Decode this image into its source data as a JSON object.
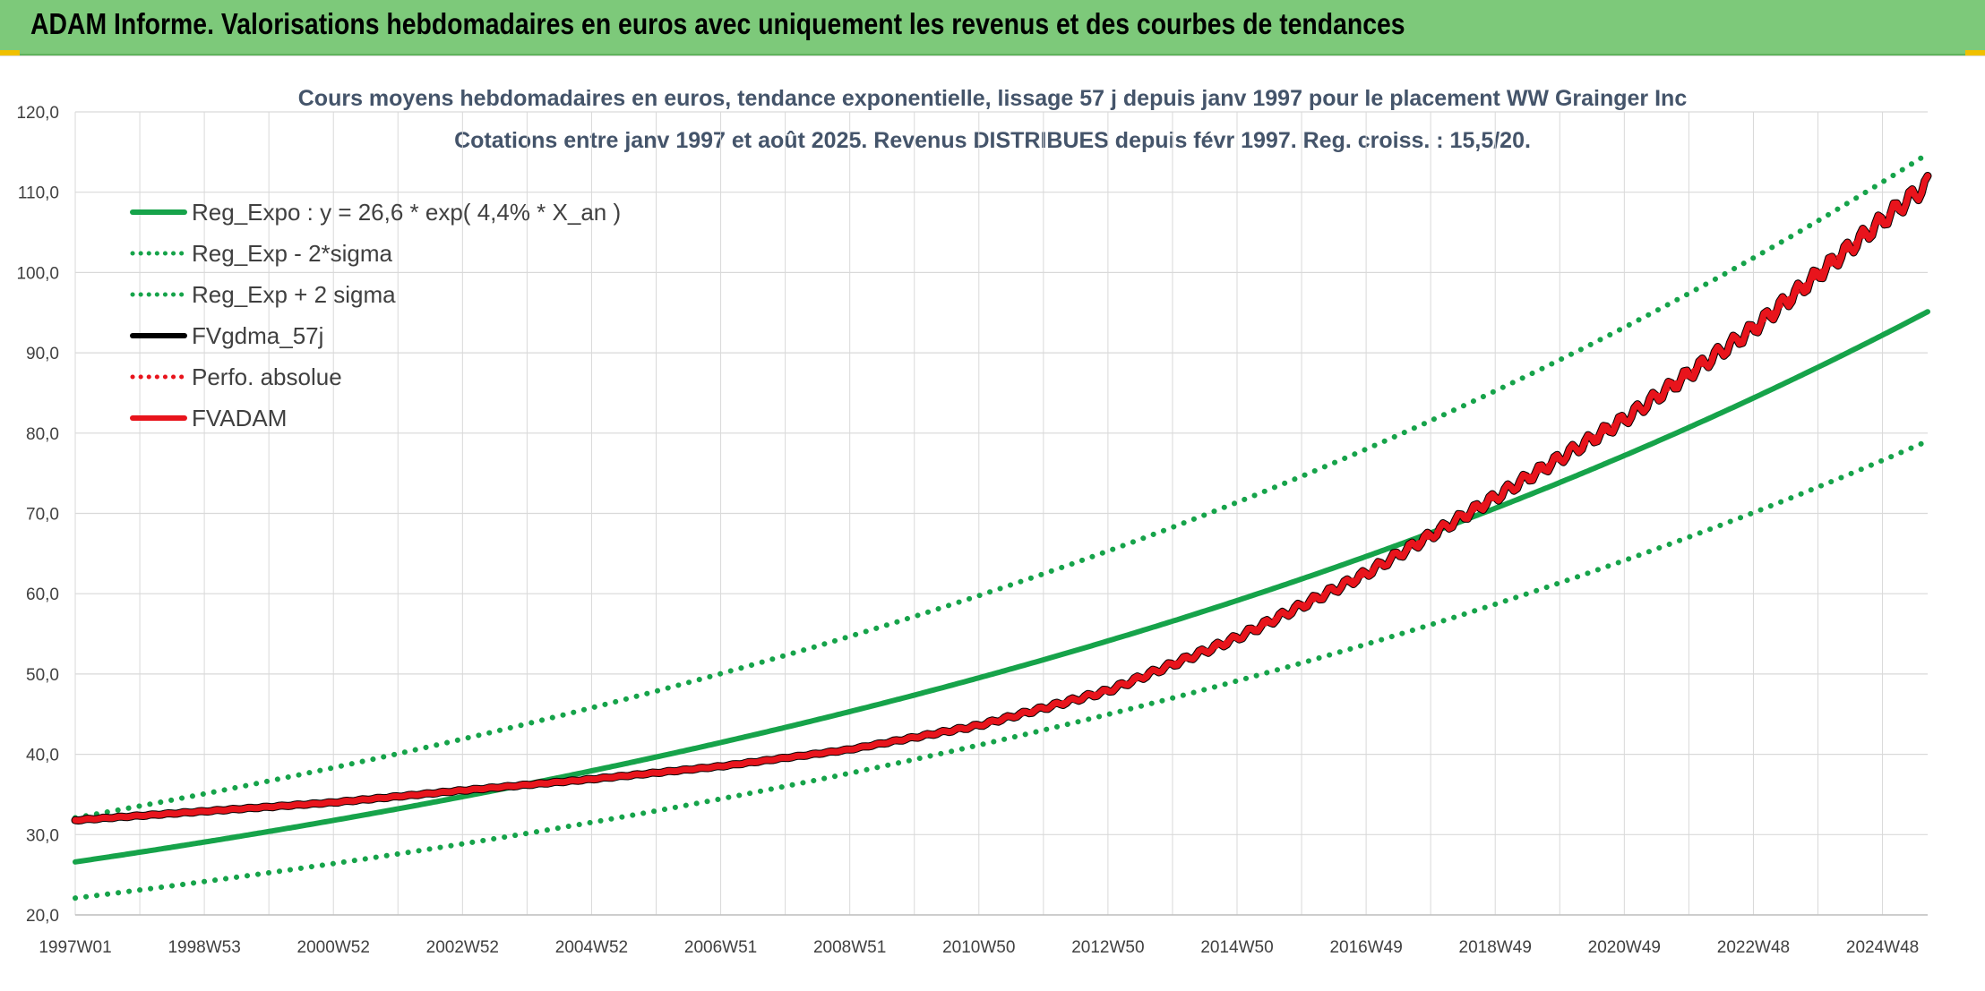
{
  "header": {
    "title": "ADAM Informe. Valorisations hebdomadaires en euros avec uniquement les revenus et des courbes de tendances"
  },
  "colors": {
    "header_bg": "#7dc97a",
    "green": "#16a34a",
    "red": "#e8141c",
    "black": "#000000",
    "grid": "#d9d9d9"
  },
  "chart_data": {
    "type": "line",
    "title": "Cours moyens hebdomadaires en euros, tendance exponentielle, lissage 57 j depuis janv 1997 pour le placement WW Grainger Inc",
    "subtitle": "Cotations entre janv 1997 et août 2025. Revenus DISTRIBUES depuis févr 1997. Reg. croiss. : 15,5/20.",
    "xlabel": "",
    "ylabel": "",
    "ylim": [
      20,
      120
    ],
    "yticks": [
      "20,0",
      "30,0",
      "40,0",
      "50,0",
      "60,0",
      "70,0",
      "80,0",
      "90,0",
      "100,0",
      "110,0",
      "120,0"
    ],
    "xlim": [
      1997.0,
      2025.7
    ],
    "xticks": [
      {
        "label": "1997W01",
        "x": 1997.0
      },
      {
        "label": "1998W53",
        "x": 1999.0
      },
      {
        "label": "2000W52",
        "x": 2001.0
      },
      {
        "label": "2002W52",
        "x": 2003.0
      },
      {
        "label": "2004W52",
        "x": 2005.0
      },
      {
        "label": "2006W51",
        "x": 2007.0
      },
      {
        "label": "2008W51",
        "x": 2009.0
      },
      {
        "label": "2010W50",
        "x": 2011.0
      },
      {
        "label": "2012W50",
        "x": 2013.0
      },
      {
        "label": "2014W50",
        "x": 2015.0
      },
      {
        "label": "2016W49",
        "x": 2017.0
      },
      {
        "label": "2018W49",
        "x": 2019.0
      },
      {
        "label": "2020W49",
        "x": 2021.0
      },
      {
        "label": "2022W48",
        "x": 2023.0
      },
      {
        "label": "2024W48",
        "x": 2025.0
      }
    ],
    "grid": true,
    "legend_position": "top-left",
    "series": [
      {
        "name": "Reg_Expo : y = 26,6 * exp( 4,4% *  X_an )",
        "color": "#16a34a",
        "style": "solid",
        "x": [
          1997.0,
          2001.0,
          2005.0,
          2009.0,
          2013.0,
          2017.0,
          2021.0,
          2025.7
        ],
        "y": [
          26.6,
          31.8,
          38.0,
          45.3,
          54.1,
          64.6,
          77.2,
          94.2
        ]
      },
      {
        "name": "Reg_Exp - 2*sigma",
        "color": "#16a34a",
        "style": "dotted",
        "x": [
          1997.0,
          2001.0,
          2005.0,
          2009.0,
          2013.0,
          2017.0,
          2021.0,
          2025.7
        ],
        "y": [
          22.1,
          26.4,
          31.5,
          37.6,
          44.9,
          53.6,
          64.0,
          78.0
        ]
      },
      {
        "name": "Reg_Exp + 2 sigma",
        "color": "#16a34a",
        "style": "dotted",
        "x": [
          1997.0,
          2001.0,
          2005.0,
          2009.0,
          2013.0,
          2017.0,
          2021.0,
          2025.7
        ],
        "y": [
          32.1,
          38.4,
          45.8,
          54.8,
          65.4,
          78.1,
          93.3,
          113.8
        ]
      },
      {
        "name": "FVgdma_57j",
        "color": "#000000",
        "style": "solid",
        "x": [
          1997.0,
          2001.0,
          2003.0,
          2005.0,
          2007.0,
          2009.0,
          2011.0,
          2013.0,
          2015.0,
          2017.0,
          2019.0,
          2021.0,
          2023.0,
          2025.0,
          2025.7
        ],
        "y": [
          31.8,
          34.0,
          35.5,
          36.9,
          38.5,
          40.6,
          43.6,
          47.9,
          54.5,
          62.5,
          72.0,
          81.7,
          93.0,
          106.5,
          111.0
        ]
      },
      {
        "name": "Perfo. absolue",
        "color": "#e8141c",
        "style": "dotted",
        "x": [
          1997.0,
          2001.0,
          2003.0,
          2005.0,
          2007.0,
          2009.0,
          2011.0,
          2013.0,
          2015.0,
          2017.0,
          2019.0,
          2021.0,
          2023.0,
          2025.0,
          2025.7
        ],
        "y": [
          31.8,
          34.0,
          35.5,
          36.9,
          38.5,
          40.6,
          43.6,
          47.9,
          54.5,
          62.5,
          72.0,
          81.7,
          93.0,
          106.5,
          111.0
        ]
      },
      {
        "name": "FVADAM",
        "color": "#e8141c",
        "style": "solid",
        "x": [
          1997.0,
          2001.0,
          2003.0,
          2005.0,
          2007.0,
          2009.0,
          2011.0,
          2013.0,
          2015.0,
          2017.0,
          2019.0,
          2021.0,
          2023.0,
          2025.0,
          2025.7
        ],
        "y": [
          31.8,
          34.0,
          35.5,
          36.9,
          38.5,
          40.6,
          43.6,
          47.9,
          54.5,
          62.5,
          72.0,
          81.7,
          93.0,
          106.5,
          111.0
        ]
      }
    ]
  }
}
